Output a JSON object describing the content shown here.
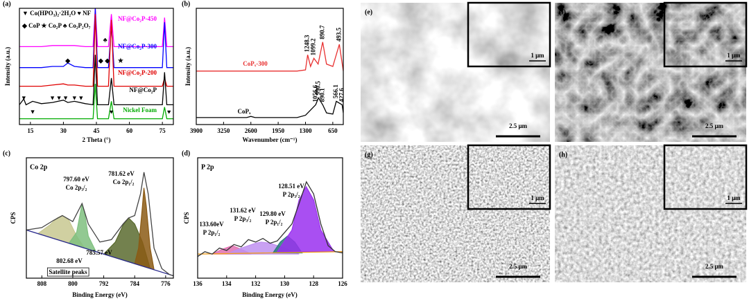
{
  "chart_data": [
    {
      "type": "line",
      "panel": "(a)",
      "x_label": "2 Theta (°)",
      "y_label": "Intensity (a.u.)",
      "legend_text": [
        "▼ Co(HPO₃)₂·2H₂O ♥ NF",
        "◆ CoP ★ Co₂P ♣ Co₂P₂O₇"
      ],
      "xlim": [
        10,
        80
      ],
      "xticks": [
        15,
        30,
        45,
        60,
        75
      ],
      "ylim": [
        0,
        100
      ],
      "x": [
        10,
        12,
        13,
        16,
        20,
        25,
        30,
        32,
        35,
        40,
        43.5,
        44.5,
        45.5,
        50.5,
        51.8,
        53,
        60,
        70,
        75,
        76,
        77,
        80
      ],
      "series": [
        {
          "name": "NF@Co₂P-450",
          "color": "#ff00ff",
          "values": [
            67,
            67,
            67,
            67,
            67,
            68,
            68,
            68,
            68,
            67,
            67,
            100,
            67,
            67,
            95,
            67,
            67,
            67,
            67,
            92,
            67,
            67
          ],
          "markers": [
            {
              "symbol": "♣",
              "x": 49
            }
          ]
        },
        {
          "name": "NF@Co₂P-300",
          "color": "#0000ff",
          "values": [
            49,
            49,
            49,
            49,
            49,
            50,
            50,
            53,
            50,
            49,
            49,
            100,
            49,
            49,
            85,
            49,
            49,
            49,
            49,
            88,
            49,
            49
          ],
          "markers": [
            {
              "symbol": "◆",
              "x": 32
            },
            {
              "symbol": "◆",
              "x": 47
            },
            {
              "symbol": "◆",
              "x": 50
            },
            {
              "symbol": "★",
              "x": 56
            }
          ]
        },
        {
          "name": "NF@Co₂P-200",
          "color": "#e00000",
          "values": [
            33,
            33,
            33,
            33,
            33,
            34,
            35,
            34,
            34,
            33,
            33,
            95,
            33,
            33,
            90,
            33,
            33,
            33,
            33,
            40,
            33,
            33
          ]
        },
        {
          "name": "NF@Co₂P",
          "color": "#000000",
          "values": [
            17,
            22,
            17,
            20,
            18,
            19,
            21,
            19,
            20,
            18,
            17,
            60,
            17,
            17,
            40,
            17,
            17,
            17,
            17,
            45,
            17,
            17
          ],
          "markers": [
            {
              "symbol": "▼",
              "x": 12
            },
            {
              "symbol": "▼",
              "x": 25
            },
            {
              "symbol": "▼",
              "x": 28
            },
            {
              "symbol": "▼",
              "x": 31
            },
            {
              "symbol": "▼",
              "x": 35
            },
            {
              "symbol": "▼",
              "x": 38
            }
          ]
        },
        {
          "name": "Nickel Foam",
          "color": "#00aa00",
          "values": [
            5,
            5,
            5,
            5,
            5,
            5,
            5,
            5,
            5,
            5,
            5,
            35,
            5,
            5,
            20,
            5,
            5,
            5,
            5,
            15,
            5,
            5
          ],
          "markers": [
            {
              "symbol": "▼",
              "x": 16
            },
            {
              "symbol": "♥",
              "x": 51.8
            },
            {
              "symbol": "♥",
              "x": 78
            }
          ]
        }
      ]
    },
    {
      "type": "line",
      "panel": "(b)",
      "x_label": "Wavenumber (cm⁻¹)",
      "y_label": "Intensity (a.u.)",
      "xlim": [
        3900,
        400
      ],
      "xticks": [
        3900,
        3250,
        2600,
        1950,
        1300,
        650
      ],
      "ylim": [
        0,
        100
      ],
      "series": [
        {
          "name": "CoPₓ-300",
          "color": "#e83030",
          "x": [
            3900,
            2600,
            1500,
            1300,
            1248.3,
            1180,
            1099.2,
            1000,
            890.7,
            800,
            650,
            493.5,
            400
          ],
          "values": [
            46,
            46,
            46,
            47,
            60,
            50,
            57,
            52,
            71,
            52,
            50,
            69,
            46
          ],
          "peak_labels": [
            1248.3,
            1099.2,
            890.7,
            493.5
          ]
        },
        {
          "name": "CoPₓ",
          "color": "#000000",
          "x": [
            3900,
            2700,
            2600,
            2500,
            1500,
            1300,
            1056.6,
            990.5,
            890.1,
            800,
            650,
            566.1,
            427.6,
            400
          ],
          "values": [
            6,
            6,
            7,
            6,
            6,
            8,
            17,
            23,
            17,
            10,
            9,
            20,
            17,
            10
          ],
          "peak_labels": [
            1056.6,
            990.5,
            890.1,
            566.1,
            427.6
          ]
        }
      ]
    },
    {
      "type": "line",
      "panel": "(c)",
      "panel_title": "Co 2p",
      "x_label": "Binding Energy (eV)",
      "y_label": "CPS",
      "xlim": [
        812,
        774
      ],
      "xticks": [
        808,
        800,
        792,
        784,
        776
      ],
      "ylim": [
        0,
        100
      ],
      "annotations": [
        "797.60 eV",
        "Co 2p₃/₂",
        "781.62 eV",
        "Co 2p₁/₂",
        "802.68 eV",
        "785.57 eV",
        "Satellite peaks"
      ],
      "series": [
        {
          "color": "#c8c890",
          "fill": true,
          "x": [
            809,
            806,
            804,
            802.7,
            801,
            799,
            797
          ],
          "values": [
            37,
            44,
            50,
            52,
            48,
            35,
            25
          ]
        },
        {
          "color": "#7fc07f",
          "fill": true,
          "x": [
            801,
            799,
            798,
            797.6,
            797,
            796,
            794
          ],
          "values": [
            29,
            38,
            55,
            62,
            55,
            35,
            22
          ]
        },
        {
          "color": "#5a6b2f",
          "fill": true,
          "x": [
            792,
            789,
            787,
            785.57,
            784,
            782,
            780
          ],
          "values": [
            20,
            30,
            44,
            50,
            45,
            30,
            8
          ]
        },
        {
          "color": "#8b5a14",
          "fill": true,
          "x": [
            784,
            783,
            782,
            781.62,
            781,
            780,
            779
          ],
          "values": [
            12,
            25,
            60,
            75,
            60,
            25,
            7
          ]
        },
        {
          "color": "#2b2b8f",
          "x": [
            812,
            774
          ],
          "values": [
            40,
            2
          ]
        },
        {
          "color": "#444444",
          "x": [
            812,
            808,
            805,
            802.7,
            800,
            797.6,
            796,
            793,
            790,
            787,
            785.6,
            784,
            782.5,
            781.6,
            780.5,
            779,
            777,
            775,
            774
          ],
          "values": [
            40,
            42,
            48,
            52,
            47,
            62,
            45,
            30,
            32,
            45,
            50,
            52,
            70,
            88,
            70,
            25,
            8,
            3,
            2
          ]
        }
      ]
    },
    {
      "type": "line",
      "panel": "(d)",
      "panel_title": "P 2p",
      "x_label": "Binding Energy (eV)",
      "y_label": "CPS",
      "xlim": [
        136,
        126
      ],
      "xticks": [
        136,
        134,
        132,
        130,
        128,
        126
      ],
      "ylim": [
        0,
        100
      ],
      "annotations": [
        "128.51 eV",
        "P 2p₃/₂",
        "131.62 eV",
        "P 2p₃/₂",
        "129.80 eV",
        "P 2p₁/₂",
        "133.60eV",
        "P 2p₁/₂"
      ],
      "series": [
        {
          "color": "#e070b0",
          "fill": true,
          "x": [
            135,
            134.3,
            133.6,
            133,
            132.3
          ],
          "values": [
            20,
            24,
            27,
            24,
            20
          ]
        },
        {
          "color": "#c090f0",
          "fill": true,
          "x": [
            134,
            133,
            132,
            131.62,
            131,
            130,
            129
          ],
          "values": [
            20,
            25,
            29,
            30,
            29,
            25,
            20
          ]
        },
        {
          "color": "#2a7a7a",
          "fill": true,
          "x": [
            130.8,
            130.3,
            129.8,
            129.3,
            128.8
          ],
          "values": [
            21,
            30,
            35,
            30,
            21
          ]
        },
        {
          "color": "#9a30f0",
          "fill": true,
          "x": [
            130.5,
            129.5,
            129,
            128.51,
            128,
            127.5,
            126.6
          ],
          "values": [
            22,
            40,
            65,
            76,
            65,
            40,
            22
          ]
        },
        {
          "color": "#f0a020",
          "x": [
            136,
            126
          ],
          "values": [
            20,
            22
          ]
        },
        {
          "color": "#333333",
          "x": [
            136,
            135.5,
            135,
            134.5,
            134,
            133.5,
            133,
            132.5,
            132,
            131.5,
            131,
            130.5,
            130,
            129.5,
            129,
            128.5,
            128,
            127.5,
            127,
            126.5,
            126
          ],
          "values": [
            18,
            22,
            20,
            25,
            23,
            28,
            26,
            32,
            30,
            33,
            29,
            31,
            38,
            45,
            62,
            80,
            70,
            45,
            27,
            22,
            21
          ]
        }
      ]
    }
  ],
  "sem_images": [
    {
      "panel": "(e)",
      "scale_bar": "2.5 μm",
      "inset_scale_bar": "1 μm"
    },
    {
      "panel": "(f)",
      "scale_bar": "2.5 μm",
      "inset_scale_bar": "1 μm"
    },
    {
      "panel": "(g)",
      "scale_bar": "2.5 μm",
      "inset_scale_bar": "1 μm"
    },
    {
      "panel": "(h)",
      "scale_bar": "2.5 μm",
      "inset_scale_bar": "1 μm"
    }
  ]
}
